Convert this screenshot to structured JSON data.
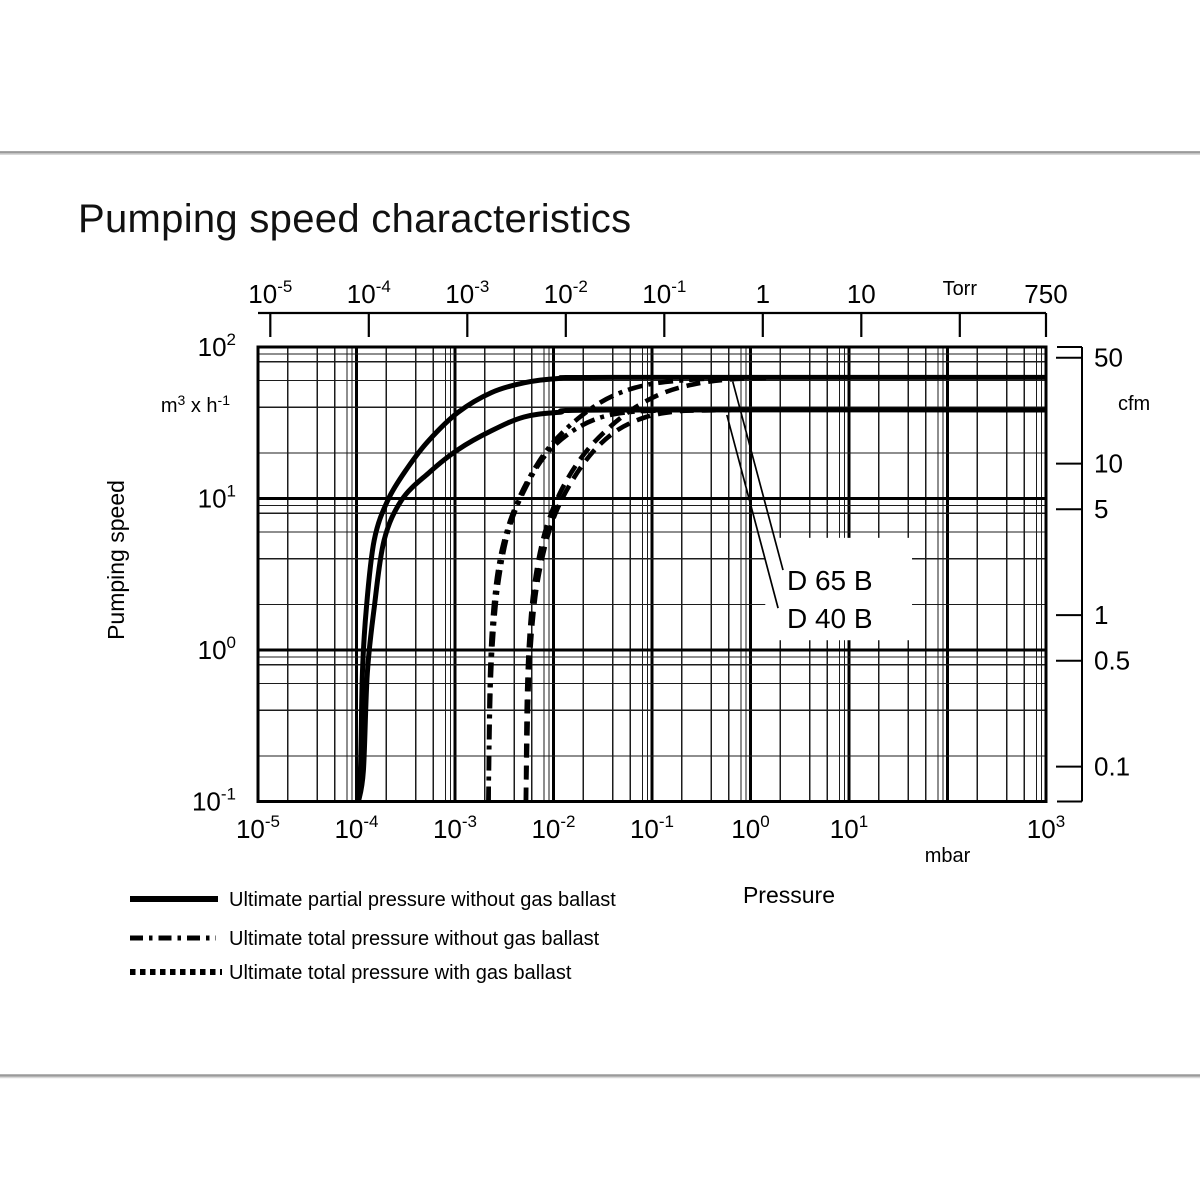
{
  "title": "Pumping speed characteristics",
  "chart_data": {
    "type": "line",
    "title": "Pumping speed characteristics",
    "x_bottom": {
      "label": "Pressure",
      "unit": "mbar",
      "scale": "log",
      "min_exp": -5,
      "max_exp": 3,
      "tick_exps": [
        -5,
        -4,
        -3,
        -2,
        -1,
        0,
        1,
        3
      ]
    },
    "x_top": {
      "unit": "Torr",
      "scale": "log",
      "to_mbar": 1.3332,
      "ticks": [
        {
          "v": 1e-05,
          "m": "10",
          "e": "-5"
        },
        {
          "v": 0.0001,
          "m": "10",
          "e": "-4"
        },
        {
          "v": 0.001,
          "m": "10",
          "e": "-3"
        },
        {
          "v": 0.01,
          "m": "10",
          "e": "-2"
        },
        {
          "v": 0.1,
          "m": "10",
          "e": "-1"
        },
        {
          "v": 1,
          "label": "1"
        },
        {
          "v": 10,
          "label": "10"
        },
        {
          "v": 100,
          "label": ""
        },
        {
          "v": 750,
          "label": "750"
        }
      ]
    },
    "y_left": {
      "label": "Pumping speed",
      "unit_parts": [
        "m",
        "3",
        " x h",
        "-1"
      ],
      "scale": "log",
      "min_exp": -1,
      "max_exp": 2,
      "tick_exps": [
        2,
        1,
        0,
        -1
      ]
    },
    "y_right": {
      "unit": "cfm",
      "to_m3h": 1.699,
      "ticks": [
        50,
        10,
        5,
        1,
        0.5,
        0.1
      ]
    },
    "grid": {
      "on": true,
      "minor_multipliers": [
        2,
        4,
        6,
        8,
        9
      ]
    },
    "legend": [
      {
        "style": "solid",
        "label": "Ultimate partial pressure without gas ballast"
      },
      {
        "style": "dash-dot",
        "label": "Ultimate total pressure without gas ballast"
      },
      {
        "style": "dotted",
        "label": "Ultimate total pressure with gas ballast"
      }
    ],
    "series": [
      {
        "name": "D 65 B ultimate partial pressure without gas ballast",
        "pump": "D 65 B",
        "style": "solid",
        "points": [
          [
            -3.99,
            0.1
          ],
          [
            -3.96,
            0.16
          ],
          [
            -3.94,
            0.7
          ],
          [
            -3.9,
            1.9
          ],
          [
            -3.82,
            5.3
          ],
          [
            -3.68,
            9.8
          ],
          [
            -3.48,
            16
          ],
          [
            -3.27,
            24
          ],
          [
            -2.97,
            37
          ],
          [
            -2.63,
            50
          ],
          [
            -2.3,
            58
          ],
          [
            -1.95,
            62
          ],
          [
            -1.4,
            63
          ],
          [
            3,
            63
          ]
        ]
      },
      {
        "name": "D 40 B ultimate partial pressure without gas ballast",
        "pump": "D 40 B",
        "style": "solid",
        "points": [
          [
            -3.98,
            0.1
          ],
          [
            -3.93,
            0.16
          ],
          [
            -3.89,
            0.7
          ],
          [
            -3.82,
            1.9
          ],
          [
            -3.72,
            5.3
          ],
          [
            -3.54,
            9.8
          ],
          [
            -3.27,
            14.7
          ],
          [
            -2.97,
            21
          ],
          [
            -2.63,
            28
          ],
          [
            -2.3,
            34.5
          ],
          [
            -1.95,
            37
          ],
          [
            -1.4,
            38.4
          ],
          [
            3,
            38.4
          ]
        ]
      },
      {
        "name": "D 65 B ultimate total pressure without gas ballast",
        "pump": "D 65 B",
        "style": "dash-dot",
        "points": [
          [
            -2.66,
            0.1
          ],
          [
            -2.65,
            0.47
          ],
          [
            -2.63,
            1.16
          ],
          [
            -2.59,
            2.5
          ],
          [
            -2.52,
            4.7
          ],
          [
            -2.4,
            8.4
          ],
          [
            -2.23,
            14.3
          ],
          [
            -2.01,
            23.2
          ],
          [
            -1.72,
            35
          ],
          [
            -1.4,
            47.5
          ],
          [
            -1.01,
            57
          ],
          [
            -0.5,
            61.5
          ],
          [
            -0.2,
            62.5
          ]
        ]
      },
      {
        "name": "D 40 B ultimate total pressure without gas ballast",
        "pump": "D 40 B",
        "style": "dash-dot",
        "points": [
          [
            -2.66,
            0.1
          ],
          [
            -2.64,
            0.55
          ],
          [
            -2.6,
            1.6
          ],
          [
            -2.54,
            3.4
          ],
          [
            -2.44,
            6.7
          ],
          [
            -2.28,
            11.9
          ],
          [
            -2.08,
            19.4
          ],
          [
            -1.82,
            27.5
          ],
          [
            -1.54,
            34
          ],
          [
            -1.23,
            37.2
          ],
          [
            -0.91,
            38.1
          ],
          [
            -0.6,
            38.4
          ]
        ]
      },
      {
        "name": "D 65 B ultimate total pressure with gas ballast",
        "pump": "D 65 B",
        "style": "dashed",
        "points": [
          [
            -2.28,
            0.1
          ],
          [
            -2.27,
            0.47
          ],
          [
            -2.24,
            1.35
          ],
          [
            -2.18,
            3.1
          ],
          [
            -2.08,
            6.2
          ],
          [
            -1.93,
            11
          ],
          [
            -1.72,
            18.5
          ],
          [
            -1.47,
            28
          ],
          [
            -1.18,
            39.5
          ],
          [
            -0.86,
            50.5
          ],
          [
            -0.5,
            58
          ],
          [
            -0.15,
            61.5
          ],
          [
            0.2,
            62.5
          ]
        ]
      },
      {
        "name": "D 40 B ultimate total pressure with gas ballast",
        "pump": "D 40 B",
        "style": "dashed",
        "points": [
          [
            -2.28,
            0.1
          ],
          [
            -2.25,
            0.63
          ],
          [
            -2.2,
            1.85
          ],
          [
            -2.12,
            3.9
          ],
          [
            -2.0,
            7.4
          ],
          [
            -1.82,
            12.8
          ],
          [
            -1.6,
            20.3
          ],
          [
            -1.35,
            28.3
          ],
          [
            -1.06,
            34.5
          ],
          [
            -0.76,
            37.5
          ],
          [
            -0.5,
            38.1
          ],
          [
            -0.2,
            38.4
          ]
        ]
      }
    ],
    "annotations": {
      "box": {
        "x1_exp": 0.15,
        "x2_exp": 1.64,
        "v_top": 5.5,
        "v_bottom": 1.16
      },
      "labels": [
        {
          "text": "D 65 B",
          "x_exp": 0.37,
          "v": 2.49
        },
        {
          "text": "D 40 B",
          "x_exp": 0.37,
          "v": 1.4
        }
      ],
      "callouts": [
        {
          "x1_exp": -0.18,
          "v1": 59,
          "x2_exp": 0.33,
          "v2": 3.37
        },
        {
          "x1_exp": -0.24,
          "v1": 35.6,
          "x2_exp": 0.28,
          "v2": 1.89
        }
      ]
    }
  },
  "colors": {
    "ink": "#000000",
    "divider_dark": "#9a9a9a",
    "divider_light": "#d8d8d8"
  }
}
